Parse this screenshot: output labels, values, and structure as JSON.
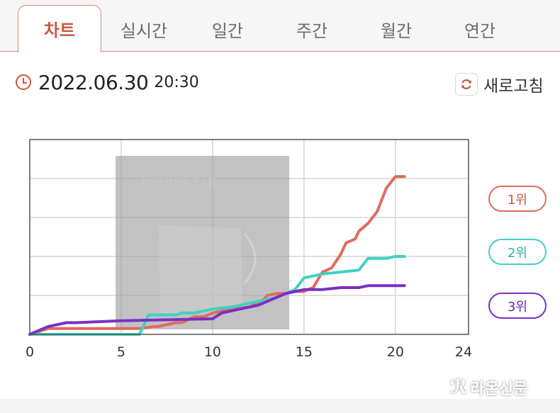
{
  "tabs": [
    {
      "label": "차트",
      "active": true
    },
    {
      "label": "실시간"
    },
    {
      "label": "일간"
    },
    {
      "label": "주간"
    },
    {
      "label": "월간"
    },
    {
      "label": "연간"
    }
  ],
  "header": {
    "date": "2022.06.30",
    "time": "20:30",
    "refresh_label": "새로고침"
  },
  "legend": [
    {
      "label": "1위",
      "color": "#e06b5d"
    },
    {
      "label": "2위",
      "color": "#3fd1c2"
    },
    {
      "label": "3위",
      "color": "#7a2fc4"
    }
  ],
  "watermark": "라온신문",
  "album_art": {
    "text": "YOUNG TAK"
  },
  "chart_data": {
    "type": "line",
    "title": "",
    "xlabel": "",
    "ylabel": "",
    "xlim": [
      0,
      24
    ],
    "ylim": [
      0,
      100
    ],
    "x_ticks": [
      "0",
      "5",
      "10",
      "15",
      "20",
      "24"
    ],
    "grid": true,
    "series": [
      {
        "name": "1위",
        "color": "#e06b5d",
        "x": [
          0,
          1,
          6,
          6.8,
          7,
          8,
          8.3,
          9,
          9.5,
          10,
          11,
          12,
          12.2,
          12.8,
          13,
          13.5,
          14,
          14.5,
          15,
          15.2,
          15.5,
          16,
          16.5,
          17,
          17.3,
          17.8,
          18,
          18.5,
          19,
          19.5,
          20,
          20.5
        ],
        "y": [
          0,
          3,
          3,
          4,
          4,
          6,
          6,
          9,
          9,
          11,
          13,
          14,
          15,
          18,
          20,
          21,
          21,
          22,
          22,
          23,
          24,
          32,
          34,
          41,
          47,
          49,
          53,
          57,
          63,
          75,
          81,
          81
        ]
      },
      {
        "name": "2위",
        "color": "#3fd1c2",
        "x": [
          0,
          6,
          6.5,
          8,
          8.3,
          9,
          9.5,
          10,
          11,
          11.5,
          12,
          12.5,
          13,
          13.5,
          14,
          14.5,
          15,
          16,
          17,
          18,
          18.5,
          19,
          19.5,
          20,
          20.5
        ],
        "y": [
          0,
          0,
          10,
          10,
          11,
          11,
          12,
          13,
          14,
          15,
          16,
          17,
          18,
          19,
          21,
          23,
          29,
          31,
          32,
          33,
          39,
          39,
          39,
          40,
          40
        ]
      },
      {
        "name": "3위",
        "color": "#7a2fc4",
        "x": [
          0,
          1,
          2,
          2.5,
          5,
          10,
          10.5,
          11,
          11.5,
          12,
          12.5,
          13,
          13.5,
          14,
          14.5,
          15,
          16,
          17,
          18,
          18.5,
          19,
          20,
          20.5
        ],
        "y": [
          0,
          4,
          6,
          6,
          7,
          8,
          11,
          12,
          13,
          14,
          15,
          17,
          19,
          21,
          22,
          23,
          23,
          24,
          24,
          25,
          25,
          25,
          25
        ]
      }
    ]
  }
}
